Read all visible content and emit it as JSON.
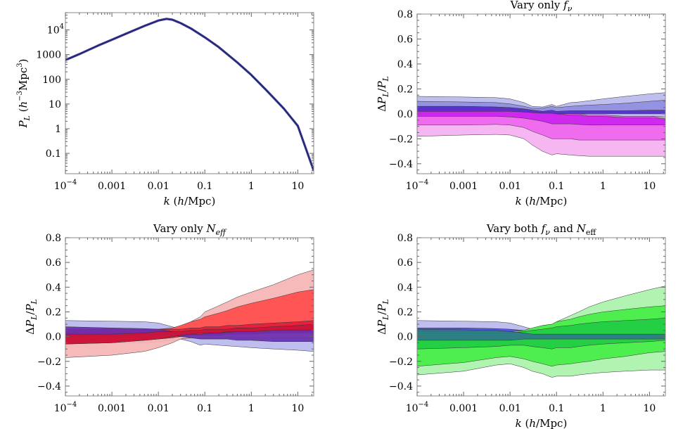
{
  "chart_data": [
    {
      "type": "line",
      "id": "power-spectrum",
      "title": "",
      "xlabel": "k (h/Mpc)",
      "ylabel": "P_L (h^-3 Mpc^3)",
      "xscale": "log",
      "yscale": "log",
      "xlim": [
        0.0001,
        22
      ],
      "ylim": [
        0.015,
        50000
      ],
      "grid": false,
      "legend": "none",
      "xticks": [
        {
          "value": 0.0001,
          "label": "10",
          "sup": "−4"
        },
        {
          "value": 0.001,
          "label": "0.001",
          "sup": ""
        },
        {
          "value": 0.01,
          "label": "0.01",
          "sup": ""
        },
        {
          "value": 0.1,
          "label": "0.1",
          "sup": ""
        },
        {
          "value": 1,
          "label": "1",
          "sup": ""
        },
        {
          "value": 10,
          "label": "10",
          "sup": ""
        }
      ],
      "yticks": [
        {
          "value": 10000,
          "label": "10",
          "sup": "4"
        },
        {
          "value": 1000,
          "label": "1000",
          "sup": ""
        },
        {
          "value": 100,
          "label": "100",
          "sup": ""
        },
        {
          "value": 10,
          "label": "10",
          "sup": ""
        },
        {
          "value": 1,
          "label": "1",
          "sup": ""
        },
        {
          "value": 0.1,
          "label": "0.1",
          "sup": ""
        }
      ],
      "series": [
        {
          "color": "#3a3aa0",
          "x": [
            0.0001,
            0.0002,
            0.0005,
            0.001,
            0.002,
            0.005,
            0.01,
            0.015,
            0.02,
            0.03,
            0.05,
            0.1,
            0.2,
            0.5,
            1,
            2,
            5,
            10,
            22
          ],
          "y": [
            600,
            1050,
            2300,
            4000,
            7000,
            14500,
            24000,
            28000,
            26000,
            19000,
            11500,
            5000,
            2000,
            480,
            150,
            40,
            6.5,
            1.3,
            0.02
          ]
        }
      ]
    },
    {
      "type": "area",
      "id": "vary-fnu",
      "title": "Vary only f",
      "title_sub": "ν",
      "xlabel": "k (h/Mpc)",
      "ylabel": "ΔP_L/P_L",
      "xscale": "log",
      "xlim": [
        0.0001,
        22
      ],
      "ylim": [
        -0.48,
        0.8
      ],
      "grid": false,
      "legend": "none",
      "xticks": [
        {
          "value": 0.0001,
          "label": "10",
          "sup": "−4"
        },
        {
          "value": 0.001,
          "label": "0.001",
          "sup": ""
        },
        {
          "value": 0.01,
          "label": "0.01",
          "sup": ""
        },
        {
          "value": 0.1,
          "label": "0.1",
          "sup": ""
        },
        {
          "value": 1,
          "label": "1",
          "sup": ""
        },
        {
          "value": 10,
          "label": "10",
          "sup": ""
        }
      ],
      "yticks": [
        0.8,
        0.6,
        0.4,
        0.2,
        0.0,
        -0.2,
        -0.4
      ],
      "ytick_labels": [
        "0.8",
        "0.6",
        "0.4",
        "0.2",
        "0.0",
        "−0.2",
        "−0.4"
      ],
      "x": [
        0.0001,
        0.001,
        0.005,
        0.01,
        0.02,
        0.03,
        0.05,
        0.08,
        0.1,
        0.2,
        0.3,
        0.5,
        1,
        3,
        10,
        22
      ],
      "bands": [
        {
          "color": "#b8b8ee",
          "upper": [
            0.14,
            0.135,
            0.13,
            0.12,
            0.09,
            0.06,
            0.055,
            0.075,
            0.06,
            0.09,
            0.095,
            0.105,
            0.12,
            0.14,
            0.16,
            0.17
          ],
          "lower": [
            -0.04,
            -0.04,
            -0.04,
            -0.04,
            -0.03,
            -0.02,
            -0.02,
            -0.02,
            -0.02,
            -0.02,
            -0.02,
            -0.02,
            -0.02,
            -0.02,
            -0.02,
            -0.02
          ]
        },
        {
          "color": "#8f8fe0",
          "upper": [
            0.1,
            0.095,
            0.09,
            0.08,
            0.06,
            0.045,
            0.045,
            0.06,
            0.05,
            0.06,
            0.065,
            0.07,
            0.075,
            0.085,
            0.1,
            0.11
          ],
          "lower": [
            0.01,
            0.01,
            0.01,
            0.01,
            0.01,
            0.01,
            0.01,
            0.01,
            0.01,
            0.01,
            0.01,
            0.01,
            0.01,
            0.01,
            0.01,
            0.01
          ]
        },
        {
          "color": "#f4b0f0",
          "upper": [
            0.0,
            0.0,
            0.0,
            -0.01,
            -0.02,
            -0.03,
            -0.05,
            -0.06,
            -0.08,
            -0.08,
            -0.09,
            -0.09,
            -0.1,
            -0.1,
            -0.1,
            -0.1
          ],
          "lower": [
            -0.18,
            -0.17,
            -0.165,
            -0.17,
            -0.2,
            -0.25,
            -0.3,
            -0.33,
            -0.32,
            -0.33,
            -0.335,
            -0.34,
            -0.34,
            -0.34,
            -0.34,
            -0.34
          ]
        },
        {
          "color": "#ee66ee",
          "upper": [
            0.06,
            0.06,
            0.055,
            0.05,
            0.04,
            0.03,
            0.02,
            0.02,
            0.01,
            0.0,
            0.0,
            -0.01,
            -0.01,
            -0.02,
            -0.02,
            -0.03
          ],
          "lower": [
            -0.09,
            -0.09,
            -0.085,
            -0.09,
            -0.11,
            -0.14,
            -0.17,
            -0.2,
            -0.2,
            -0.2,
            -0.21,
            -0.21,
            -0.21,
            -0.21,
            -0.21,
            -0.21
          ]
        },
        {
          "color": "#cc22ee",
          "upper": [
            0.05,
            0.05,
            0.045,
            0.04,
            0.03,
            0.02,
            0.01,
            0.005,
            0.0,
            -0.01,
            -0.01,
            -0.02,
            -0.02,
            -0.03,
            -0.03,
            -0.04
          ],
          "lower": [
            -0.02,
            -0.02,
            -0.02,
            -0.025,
            -0.035,
            -0.045,
            -0.06,
            -0.08,
            -0.08,
            -0.08,
            -0.085,
            -0.09,
            -0.09,
            -0.09,
            -0.09,
            -0.09
          ]
        },
        {
          "color": "#5530cc",
          "upper": [
            0.06,
            0.06,
            0.055,
            0.05,
            0.04,
            0.03,
            0.02,
            0.03,
            0.02,
            0.025,
            0.025,
            0.025,
            0.025,
            0.025,
            0.03,
            0.03
          ],
          "lower": [
            0.02,
            0.02,
            0.02,
            0.02,
            0.015,
            0.01,
            0.005,
            0.005,
            0.0,
            0.0,
            0.0,
            0.0,
            0.0,
            0.0,
            0.0,
            0.0
          ]
        }
      ]
    },
    {
      "type": "area",
      "id": "vary-neff",
      "title": "Vary only N",
      "title_sub": "eff",
      "xlabel": "",
      "ylabel": "ΔP_L/P_L",
      "xscale": "log",
      "xlim": [
        0.0001,
        22
      ],
      "ylim": [
        -0.48,
        0.8
      ],
      "grid": false,
      "legend": "none",
      "xticks": [
        {
          "value": 0.0001,
          "label": "10",
          "sup": "−4"
        },
        {
          "value": 0.001,
          "label": "0.001",
          "sup": ""
        },
        {
          "value": 0.01,
          "label": "0.01",
          "sup": ""
        },
        {
          "value": 0.1,
          "label": "0.1",
          "sup": ""
        },
        {
          "value": 1,
          "label": "1",
          "sup": ""
        },
        {
          "value": 10,
          "label": "10",
          "sup": ""
        }
      ],
      "yticks": [
        0.8,
        0.6,
        0.4,
        0.2,
        0.0,
        -0.2,
        -0.4
      ],
      "ytick_labels": [
        "0.8",
        "0.6",
        "0.4",
        "0.2",
        "0.0",
        "−0.2",
        "−0.4"
      ],
      "x": [
        0.0001,
        0.001,
        0.005,
        0.01,
        0.02,
        0.03,
        0.05,
        0.08,
        0.1,
        0.2,
        0.3,
        0.5,
        1,
        3,
        10,
        22
      ],
      "bands": [
        {
          "color": "#b8b8ee",
          "upper": [
            0.13,
            0.125,
            0.12,
            0.11,
            0.08,
            0.06,
            0.04,
            0.03,
            0.03,
            0.04,
            0.045,
            0.05,
            0.055,
            0.06,
            0.065,
            0.07
          ],
          "lower": [
            -0.05,
            -0.05,
            -0.05,
            -0.04,
            -0.03,
            -0.02,
            -0.04,
            -0.07,
            -0.06,
            -0.07,
            -0.075,
            -0.08,
            -0.09,
            -0.1,
            -0.11,
            -0.12
          ]
        },
        {
          "color": "#f6b4b4",
          "upper": [
            -0.02,
            -0.02,
            -0.01,
            0.0,
            0.03,
            0.07,
            0.12,
            0.16,
            0.2,
            0.25,
            0.28,
            0.32,
            0.36,
            0.42,
            0.5,
            0.54
          ],
          "lower": [
            -0.17,
            -0.15,
            -0.12,
            -0.09,
            -0.05,
            -0.02,
            -0.01,
            -0.01,
            -0.01,
            -0.01,
            -0.01,
            -0.01,
            -0.01,
            -0.01,
            -0.01,
            -0.01
          ]
        },
        {
          "color": "#ff4c4c",
          "upper": [
            0.06,
            0.06,
            0.06,
            0.06,
            0.07,
            0.09,
            0.12,
            0.14,
            0.16,
            0.19,
            0.21,
            0.24,
            0.27,
            0.31,
            0.36,
            0.38
          ],
          "lower": [
            -0.05,
            -0.04,
            -0.02,
            0.0,
            0.02,
            0.04,
            0.04,
            0.03,
            0.03,
            0.03,
            0.03,
            0.03,
            0.03,
            0.03,
            0.03,
            0.03
          ]
        },
        {
          "color": "#e0203c",
          "upper": [
            0.06,
            0.06,
            0.06,
            0.06,
            0.06,
            0.06,
            0.07,
            0.07,
            0.08,
            0.08,
            0.09,
            0.09,
            0.1,
            0.11,
            0.12,
            0.13
          ],
          "lower": [
            -0.06,
            -0.05,
            -0.03,
            -0.02,
            -0.01,
            0.0,
            0.01,
            0.01,
            0.01,
            0.01,
            0.02,
            0.02,
            0.02,
            0.03,
            0.03,
            0.04
          ]
        },
        {
          "color": "#6a2fb0",
          "upper": [
            0.08,
            0.07,
            0.065,
            0.06,
            0.04,
            0.03,
            0.02,
            0.02,
            0.025,
            0.03,
            0.035,
            0.04,
            0.045,
            0.055,
            0.06,
            0.065
          ],
          "lower": [
            0.0,
            0.005,
            0.01,
            0.01,
            0.01,
            0.0,
            -0.01,
            -0.02,
            -0.02,
            -0.02,
            -0.02,
            -0.03,
            -0.03,
            -0.04,
            -0.04,
            -0.04
          ]
        },
        {
          "color": "#cc1538",
          "upper": [
            0.02,
            0.02,
            0.03,
            0.04,
            0.04,
            0.04,
            0.05,
            0.05,
            0.06,
            0.06,
            0.06,
            0.07,
            0.07,
            0.08,
            0.09,
            0.1
          ],
          "lower": [
            -0.06,
            -0.05,
            -0.03,
            -0.02,
            0.0,
            0.01,
            0.02,
            0.03,
            0.03,
            0.03,
            0.04,
            0.04,
            0.04,
            0.05,
            0.05,
            0.05
          ]
        }
      ]
    },
    {
      "type": "area",
      "id": "vary-both",
      "title": "Vary both f",
      "title_sub": "ν",
      "title_tail": " and N",
      "title_tail_sub": "eff",
      "xlabel": "k (h/Mpc)",
      "ylabel": "ΔP_L/P_L",
      "xscale": "log",
      "xlim": [
        0.0001,
        22
      ],
      "ylim": [
        -0.48,
        0.8
      ],
      "grid": false,
      "legend": "none",
      "xticks": [
        {
          "value": 0.0001,
          "label": "10",
          "sup": "−4"
        },
        {
          "value": 0.001,
          "label": "0.001",
          "sup": ""
        },
        {
          "value": 0.01,
          "label": "0.01",
          "sup": ""
        },
        {
          "value": 0.1,
          "label": "0.1",
          "sup": ""
        },
        {
          "value": 1,
          "label": "1",
          "sup": ""
        },
        {
          "value": 10,
          "label": "10",
          "sup": ""
        }
      ],
      "yticks": [
        0.8,
        0.6,
        0.4,
        0.2,
        0.0,
        -0.2,
        -0.4
      ],
      "ytick_labels": [
        "0.8",
        "0.6",
        "0.4",
        "0.2",
        "0.0",
        "−0.2",
        "−0.4"
      ],
      "x": [
        0.0001,
        0.001,
        0.005,
        0.01,
        0.02,
        0.03,
        0.05,
        0.08,
        0.1,
        0.2,
        0.3,
        0.5,
        1,
        3,
        10,
        22
      ],
      "bands": [
        {
          "color": "#b8b8ee",
          "upper": [
            0.13,
            0.125,
            0.12,
            0.11,
            0.08,
            0.06,
            0.045,
            0.05,
            0.05,
            0.06,
            0.065,
            0.07,
            0.075,
            0.08,
            0.085,
            0.09
          ],
          "lower": [
            -0.05,
            -0.05,
            -0.05,
            -0.04,
            -0.03,
            -0.02,
            -0.02,
            -0.03,
            -0.03,
            -0.03,
            -0.03,
            -0.03,
            -0.03,
            -0.03,
            -0.03,
            -0.03
          ]
        },
        {
          "color": "#4c4ce0",
          "upper": [
            0.07,
            0.07,
            0.065,
            0.06,
            0.05,
            0.04,
            0.035,
            0.04,
            0.04,
            0.045,
            0.05,
            0.05,
            0.055,
            0.06,
            0.065,
            0.07
          ],
          "lower": [
            0.01,
            0.01,
            0.01,
            0.01,
            0.01,
            0.01,
            0.01,
            0.01,
            0.01,
            0.01,
            0.01,
            0.01,
            0.01,
            0.01,
            0.01,
            0.01
          ]
        },
        {
          "color": "#aaf2aa",
          "upper": [
            -0.03,
            -0.02,
            -0.01,
            0.0,
            0.02,
            0.05,
            0.09,
            0.1,
            0.12,
            0.17,
            0.2,
            0.24,
            0.28,
            0.33,
            0.38,
            0.41
          ],
          "lower": [
            -0.31,
            -0.28,
            -0.23,
            -0.22,
            -0.25,
            -0.28,
            -0.3,
            -0.33,
            -0.32,
            -0.32,
            -0.31,
            -0.3,
            -0.29,
            -0.28,
            -0.27,
            -0.27
          ]
        },
        {
          "color": "#44ee44",
          "upper": [
            0.04,
            0.04,
            0.04,
            0.04,
            0.05,
            0.07,
            0.09,
            0.1,
            0.12,
            0.14,
            0.16,
            0.18,
            0.2,
            0.22,
            0.24,
            0.25
          ],
          "lower": [
            -0.24,
            -0.21,
            -0.17,
            -0.16,
            -0.18,
            -0.2,
            -0.22,
            -0.24,
            -0.23,
            -0.22,
            -0.21,
            -0.2,
            -0.18,
            -0.16,
            -0.13,
            -0.12
          ]
        },
        {
          "color": "#22cc44",
          "upper": [
            0.03,
            0.03,
            0.03,
            0.03,
            0.04,
            0.05,
            0.06,
            0.07,
            0.08,
            0.09,
            0.1,
            0.11,
            0.12,
            0.13,
            0.14,
            0.15
          ],
          "lower": [
            -0.1,
            -0.09,
            -0.08,
            -0.07,
            -0.07,
            -0.08,
            -0.09,
            -0.1,
            -0.09,
            -0.09,
            -0.08,
            -0.07,
            -0.06,
            -0.05,
            -0.04,
            -0.03
          ]
        },
        {
          "color": "#2f7a8a",
          "upper": [
            0.06,
            0.055,
            0.05,
            0.04,
            0.03,
            0.02,
            0.02,
            0.02,
            0.02,
            0.02,
            0.02,
            0.02,
            0.02,
            0.02,
            0.02,
            0.02
          ],
          "lower": [
            -0.03,
            -0.03,
            -0.03,
            -0.03,
            -0.02,
            -0.02,
            -0.02,
            -0.02,
            -0.02,
            -0.02,
            -0.02,
            -0.02,
            -0.02,
            -0.02,
            -0.02,
            -0.02
          ]
        }
      ]
    }
  ]
}
